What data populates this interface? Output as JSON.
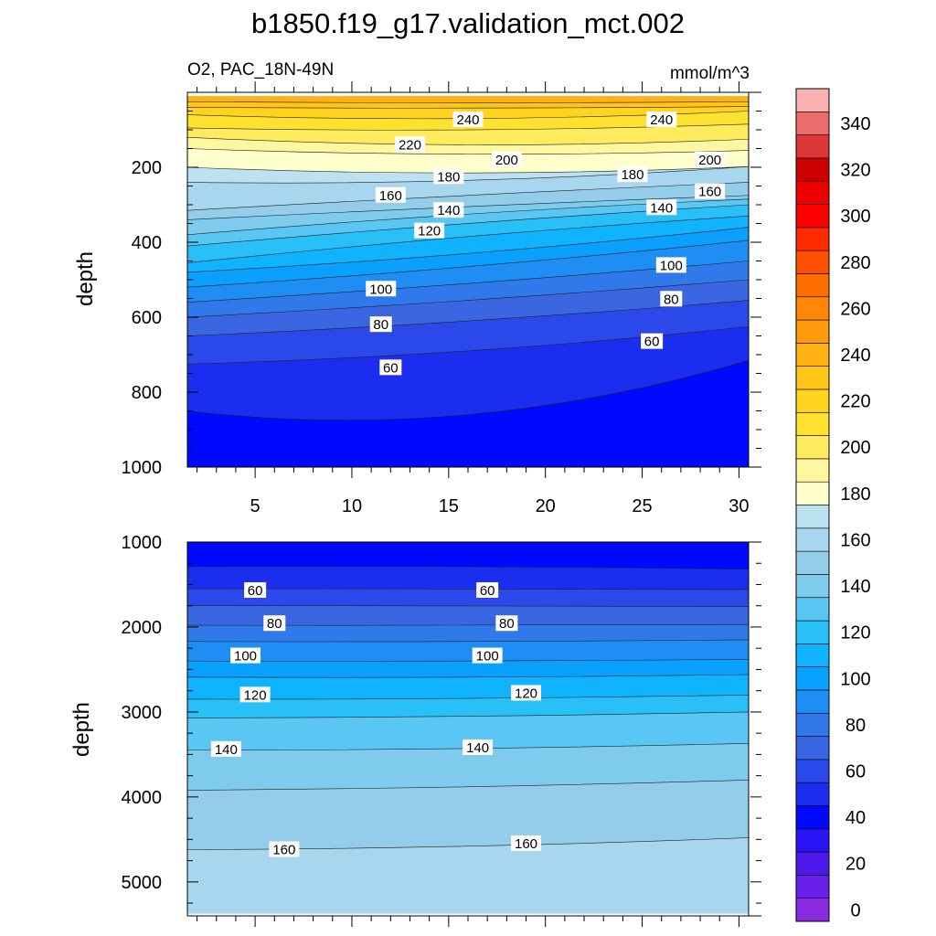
{
  "chart_data": {
    "type": "contour",
    "title": "b1850.f19_g17.validation_mct.002",
    "subtitle_left": "O2, PAC_18N-49N",
    "subtitle_right": "mmol/m^3",
    "ylabel": "depth",
    "xlabel": "",
    "x_ticks": [
      5,
      10,
      15,
      20,
      25,
      30
    ],
    "xlim": [
      1.5,
      30.5
    ],
    "colorbar": {
      "levels": [
        0,
        10,
        20,
        30,
        40,
        50,
        60,
        70,
        80,
        90,
        100,
        110,
        120,
        130,
        140,
        150,
        160,
        170,
        180,
        190,
        200,
        210,
        220,
        230,
        240,
        250,
        260,
        270,
        280,
        290,
        300,
        310,
        320,
        330,
        340,
        350
      ],
      "labels": [
        0,
        20,
        40,
        60,
        80,
        100,
        120,
        140,
        160,
        180,
        200,
        220,
        240,
        260,
        280,
        300,
        320,
        340
      ],
      "colors": [
        "#8a2be2",
        "#6a1fe8",
        "#4b1aea",
        "#2a14f5",
        "#0008ff",
        "#1b2ef0",
        "#2b49ea",
        "#3a66e2",
        "#3079eb",
        "#1e8ef5",
        "#0aa0ff",
        "#10b3ff",
        "#29bff7",
        "#59c6f3",
        "#7ecbee",
        "#93cde9",
        "#a8d6ee",
        "#bce2f2",
        "#ffffcc",
        "#fff6a0",
        "#ffec5e",
        "#ffe230",
        "#ffd31e",
        "#ffc517",
        "#ffb012",
        "#ff9a0c",
        "#ff8606",
        "#ff6e00",
        "#ff5000",
        "#ff2a00",
        "#ff0000",
        "#ef0000",
        "#cc0000",
        "#dd3636",
        "#ec6c6c",
        "#f9b0b0"
      ]
    },
    "panels": [
      {
        "name": "upper",
        "ylim": [
          0,
          1000
        ],
        "y_ticks": [
          200,
          400,
          600,
          800,
          1000
        ],
        "depth_range_shown": [
          10,
          1000
        ],
        "contour_lines": [
          {
            "value": 240,
            "depths": [
              25,
              28,
              25
            ]
          },
          {
            "value": 230,
            "depths": [
              40,
              42,
              38
            ]
          },
          {
            "value": 220,
            "depths": [
              60,
              70,
              50
            ]
          },
          {
            "value": 210,
            "depths": [
              95,
              100,
              85
            ]
          },
          {
            "value": 200,
            "depths": [
              120,
              140,
              125
            ]
          },
          {
            "value": 190,
            "depths": [
              150,
              165,
              155
            ]
          },
          {
            "value": 180,
            "depths": [
              200,
              215,
              198
            ]
          },
          {
            "value": 170,
            "depths": [
              240,
              235,
              198
            ]
          },
          {
            "value": 160,
            "depths": [
              315,
              275,
              240
            ]
          },
          {
            "value": 150,
            "depths": [
              340,
              305,
              275
            ]
          },
          {
            "value": 140,
            "depths": [
              380,
              325,
              285
            ]
          },
          {
            "value": 130,
            "depths": [
              410,
              350,
              300
            ]
          },
          {
            "value": 120,
            "depths": [
              455,
              385,
              330
            ]
          },
          {
            "value": 110,
            "depths": [
              480,
              430,
              360
            ]
          },
          {
            "value": 100,
            "depths": [
              520,
              465,
              395
            ]
          },
          {
            "value": 90,
            "depths": [
              560,
              510,
              450
            ]
          },
          {
            "value": 80,
            "depths": [
              600,
              555,
              500
            ]
          },
          {
            "value": 70,
            "depths": [
              650,
              610,
              555
            ]
          },
          {
            "value": 60,
            "depths": [
              725,
              690,
              625
            ]
          },
          {
            "value": 50,
            "depths": [
              850,
              860,
              715
            ]
          }
        ],
        "labels": [
          {
            "value": 240,
            "x": 16,
            "depth": 73
          },
          {
            "value": 240,
            "x": 26,
            "depth": 73
          },
          {
            "value": 220,
            "x": 13,
            "depth": 140
          },
          {
            "value": 200,
            "x": 18,
            "depth": 180
          },
          {
            "value": 200,
            "x": 28.5,
            "depth": 180
          },
          {
            "value": 180,
            "x": 15,
            "depth": 225
          },
          {
            "value": 180,
            "x": 24.5,
            "depth": 220
          },
          {
            "value": 160,
            "x": 12,
            "depth": 275
          },
          {
            "value": 160,
            "x": 28.5,
            "depth": 265
          },
          {
            "value": 140,
            "x": 15,
            "depth": 315
          },
          {
            "value": 140,
            "x": 26,
            "depth": 308
          },
          {
            "value": 120,
            "x": 14,
            "depth": 370
          },
          {
            "value": 100,
            "x": 11.5,
            "depth": 525
          },
          {
            "value": 100,
            "x": 26.5,
            "depth": 462
          },
          {
            "value": 80,
            "x": 11.5,
            "depth": 620
          },
          {
            "value": 80,
            "x": 26.5,
            "depth": 552
          },
          {
            "value": 60,
            "x": 12,
            "depth": 735
          },
          {
            "value": 60,
            "x": 25.5,
            "depth": 665
          }
        ]
      },
      {
        "name": "lower",
        "ylim": [
          1000,
          5400
        ],
        "y_ticks": [
          1000,
          2000,
          3000,
          4000,
          5000
        ],
        "depth_range_shown": [
          1000,
          5370
        ],
        "contour_lines": [
          {
            "value": 50,
            "depths": [
              1290,
              1290,
              1320
            ]
          },
          {
            "value": 60,
            "depths": [
              1550,
              1550,
              1560
            ]
          },
          {
            "value": 70,
            "depths": [
              1750,
              1750,
              1760
            ]
          },
          {
            "value": 80,
            "depths": [
              1980,
              1980,
              1970
            ]
          },
          {
            "value": 90,
            "depths": [
              2170,
              2170,
              2150
            ]
          },
          {
            "value": 100,
            "depths": [
              2400,
              2400,
              2380
            ]
          },
          {
            "value": 110,
            "depths": [
              2590,
              2590,
              2560
            ]
          },
          {
            "value": 120,
            "depths": [
              2850,
              2840,
              2800
            ]
          },
          {
            "value": 130,
            "depths": [
              3070,
              3050,
              3000
            ]
          },
          {
            "value": 140,
            "depths": [
              3450,
              3430,
              3370
            ]
          },
          {
            "value": 150,
            "depths": [
              3920,
              3880,
              3800
            ]
          },
          {
            "value": 160,
            "depths": [
              4620,
              4580,
              4480
            ]
          }
        ],
        "labels": [
          {
            "value": 60,
            "x": 5,
            "depth": 1570
          },
          {
            "value": 60,
            "x": 17,
            "depth": 1570
          },
          {
            "value": 80,
            "x": 6,
            "depth": 1960
          },
          {
            "value": 80,
            "x": 18,
            "depth": 1960
          },
          {
            "value": 100,
            "x": 4.5,
            "depth": 2340
          },
          {
            "value": 100,
            "x": 17,
            "depth": 2340
          },
          {
            "value": 120,
            "x": 5,
            "depth": 2800
          },
          {
            "value": 120,
            "x": 19,
            "depth": 2780
          },
          {
            "value": 140,
            "x": 3.5,
            "depth": 3440
          },
          {
            "value": 140,
            "x": 16.5,
            "depth": 3420
          },
          {
            "value": 160,
            "x": 6.5,
            "depth": 4620
          },
          {
            "value": 160,
            "x": 19,
            "depth": 4550
          }
        ]
      }
    ]
  }
}
